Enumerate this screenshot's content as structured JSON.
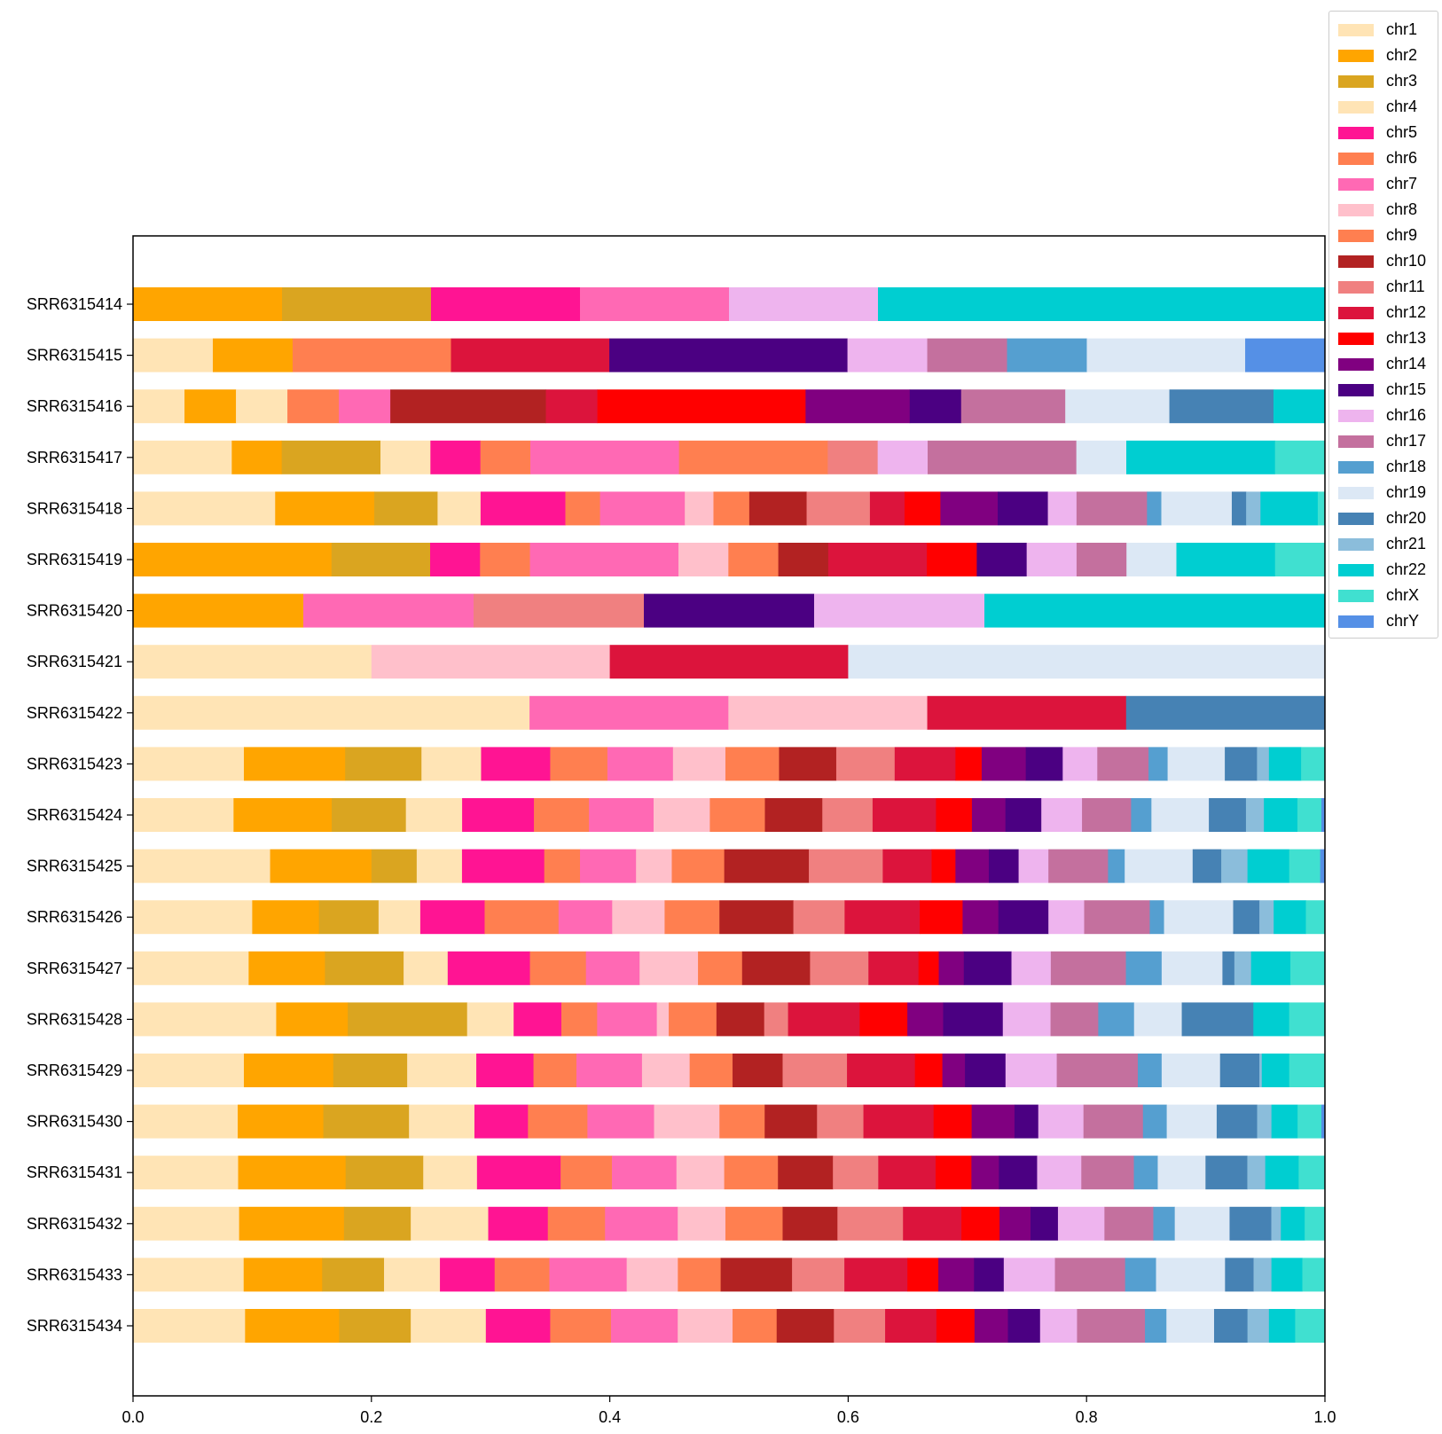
{
  "chart_data": {
    "type": "bar",
    "orientation": "horizontal",
    "stacked": true,
    "normalized": true,
    "title": "",
    "xlabel": "",
    "ylabel": "",
    "xlim": [
      0,
      1
    ],
    "xticks": [
      "0.0",
      "0.2",
      "0.4",
      "0.6",
      "0.8",
      "1.0"
    ],
    "grid": false,
    "legend_position": "top-right, outside plot",
    "categories": [
      "SRR6315414",
      "SRR6315415",
      "SRR6315416",
      "SRR6315417",
      "SRR6315418",
      "SRR6315419",
      "SRR6315420",
      "SRR6315421",
      "SRR6315422",
      "SRR6315423",
      "SRR6315424",
      "SRR6315425",
      "SRR6315426",
      "SRR6315427",
      "SRR6315428",
      "SRR6315429",
      "SRR6315430",
      "SRR6315431",
      "SRR6315432",
      "SRR6315433",
      "SRR6315434"
    ],
    "series": [
      {
        "name": "chr1",
        "color": "#FFE4B5",
        "values": [
          0,
          0.067,
          0.043,
          0.083,
          0.119,
          0,
          0,
          0.2,
          0.333,
          0.093,
          0.084,
          0.115,
          0.1,
          0.097,
          0.12,
          0.093,
          0.088,
          0.088,
          0.089,
          0.093,
          0.094
        ]
      },
      {
        "name": "chr2",
        "color": "#FFA500",
        "values": [
          0.125,
          0.067,
          0.043,
          0.042,
          0.083,
          0.167,
          0.143,
          0,
          0,
          0.085,
          0.082,
          0.085,
          0.056,
          0.064,
          0.06,
          0.075,
          0.072,
          0.09,
          0.088,
          0.066,
          0.079
        ]
      },
      {
        "name": "chr3",
        "color": "#DAA520",
        "values": [
          0.125,
          0,
          0,
          0.083,
          0.053,
          0.083,
          0,
          0,
          0,
          0.064,
          0.062,
          0.038,
          0.05,
          0.066,
          0.1,
          0.062,
          0.072,
          0.065,
          0.056,
          0.052,
          0.06
        ]
      },
      {
        "name": "chr4",
        "color": "#FFE4B5",
        "values": [
          0,
          0,
          0.043,
          0.042,
          0.036,
          0,
          0,
          0,
          0,
          0.05,
          0.047,
          0.038,
          0.035,
          0.037,
          0.039,
          0.058,
          0.055,
          0.045,
          0.065,
          0.047,
          0.063
        ]
      },
      {
        "name": "chr5",
        "color": "#FF1493",
        "values": [
          0.125,
          0,
          0,
          0.042,
          0.071,
          0.042,
          0,
          0,
          0,
          0.058,
          0.06,
          0.069,
          0.054,
          0.069,
          0.04,
          0.048,
          0.045,
          0.07,
          0.05,
          0.046,
          0.054
        ]
      },
      {
        "name": "chr6",
        "color": "#FF7F50",
        "values": [
          0,
          0.133,
          0.043,
          0.042,
          0.029,
          0.042,
          0,
          0,
          0,
          0.048,
          0.046,
          0.03,
          0.062,
          0.047,
          0.03,
          0.036,
          0.05,
          0.043,
          0.048,
          0.046,
          0.051
        ]
      },
      {
        "name": "chr7",
        "color": "#FF69B4",
        "values": [
          0.125,
          0,
          0.043,
          0.125,
          0.071,
          0.125,
          0.143,
          0,
          0.167,
          0.055,
          0.054,
          0.047,
          0.045,
          0.045,
          0.05,
          0.055,
          0.056,
          0.054,
          0.061,
          0.065,
          0.056
        ]
      },
      {
        "name": "chr8",
        "color": "#FFC0CB",
        "values": [
          0,
          0,
          0,
          0,
          0.024,
          0.042,
          0,
          0.2,
          0.167,
          0.044,
          0.047,
          0.03,
          0.044,
          0.049,
          0.01,
          0.04,
          0.055,
          0.04,
          0.04,
          0.043,
          0.046
        ]
      },
      {
        "name": "chr9",
        "color": "#FF7F50",
        "values": [
          0,
          0,
          0,
          0.125,
          0.03,
          0.042,
          0,
          0,
          0,
          0.045,
          0.046,
          0.044,
          0.046,
          0.037,
          0.04,
          0.036,
          0.038,
          0.045,
          0.048,
          0.036,
          0.037
        ]
      },
      {
        "name": "chr10",
        "color": "#B22222",
        "values": [
          0,
          0,
          0.13,
          0,
          0.048,
          0.042,
          0,
          0,
          0,
          0.048,
          0.048,
          0.071,
          0.062,
          0.057,
          0.04,
          0.042,
          0.044,
          0.046,
          0.046,
          0.06,
          0.048
        ]
      },
      {
        "name": "chr11",
        "color": "#F08080",
        "values": [
          0,
          0,
          0,
          0.042,
          0.053,
          0,
          0.143,
          0,
          0,
          0.049,
          0.042,
          0.062,
          0.043,
          0.049,
          0.02,
          0.054,
          0.039,
          0.038,
          0.055,
          0.044,
          0.043
        ]
      },
      {
        "name": "chr12",
        "color": "#DC143C",
        "values": [
          0,
          0.133,
          0.043,
          0,
          0.029,
          0.083,
          0,
          0.2,
          0.167,
          0.051,
          0.053,
          0.041,
          0.063,
          0.042,
          0.06,
          0.057,
          0.059,
          0.048,
          0.049,
          0.053,
          0.043
        ]
      },
      {
        "name": "chr13",
        "color": "#FF0000",
        "values": [
          0,
          0,
          0.174,
          0,
          0.03,
          0.042,
          0,
          0,
          0,
          0.022,
          0.03,
          0.02,
          0.036,
          0.017,
          0.04,
          0.023,
          0.032,
          0.03,
          0.032,
          0.026,
          0.032
        ]
      },
      {
        "name": "chr14",
        "color": "#800080",
        "values": [
          0,
          0,
          0.087,
          0,
          0.048,
          0,
          0,
          0,
          0,
          0.037,
          0.028,
          0.028,
          0.03,
          0.021,
          0.03,
          0.019,
          0.036,
          0.023,
          0.026,
          0.03,
          0.028
        ]
      },
      {
        "name": "chr15",
        "color": "#4B0082",
        "values": [
          0,
          0.2,
          0.043,
          0,
          0.042,
          0.042,
          0.143,
          0,
          0,
          0.031,
          0.03,
          0.025,
          0.042,
          0.04,
          0.05,
          0.034,
          0.02,
          0.032,
          0.023,
          0.025,
          0.027
        ]
      },
      {
        "name": "chr16",
        "color": "#EEB4EE",
        "values": [
          0.125,
          0.067,
          0,
          0.042,
          0.024,
          0.042,
          0.143,
          0,
          0,
          0.029,
          0.034,
          0.025,
          0.03,
          0.033,
          0.04,
          0.043,
          0.038,
          0.037,
          0.039,
          0.043,
          0.031
        ]
      },
      {
        "name": "chr17",
        "color": "#C4709E",
        "values": [
          0,
          0.067,
          0.087,
          0.125,
          0.059,
          0.042,
          0,
          0,
          0,
          0.043,
          0.041,
          0.05,
          0.055,
          0.063,
          0.04,
          0.068,
          0.05,
          0.044,
          0.041,
          0.059,
          0.057
        ]
      },
      {
        "name": "chr18",
        "color": "#559FD0",
        "values": [
          0,
          0.067,
          0,
          0,
          0.012,
          0,
          0,
          0,
          0,
          0.016,
          0.017,
          0.014,
          0.012,
          0.03,
          0.03,
          0.02,
          0.02,
          0.02,
          0.018,
          0.026,
          0.018
        ]
      },
      {
        "name": "chr19",
        "color": "#DCE8F5",
        "values": [
          0,
          0.133,
          0.087,
          0.042,
          0.059,
          0.042,
          0,
          0.4,
          0,
          0.048,
          0.048,
          0.057,
          0.058,
          0.051,
          0.04,
          0.049,
          0.042,
          0.04,
          0.046,
          0.058,
          0.04
        ]
      },
      {
        "name": "chr20",
        "color": "#4682B4",
        "values": [
          0,
          0,
          0.087,
          0,
          0.012,
          0,
          0,
          0,
          0.167,
          0.027,
          0.031,
          0.024,
          0.022,
          0.01,
          0.06,
          0.033,
          0.034,
          0.035,
          0.035,
          0.024,
          0.028
        ]
      },
      {
        "name": "chr21",
        "color": "#8BBDDB",
        "values": [
          0,
          0,
          0,
          0,
          0.012,
          0,
          0,
          0,
          0,
          0.01,
          0.015,
          0.022,
          0.012,
          0.014,
          0,
          0.002,
          0.012,
          0.015,
          0.008,
          0.015,
          0.018
        ]
      },
      {
        "name": "chr22",
        "color": "#00CED1",
        "values": [
          0.375,
          0,
          0.043,
          0.125,
          0.048,
          0.083,
          0.286,
          0,
          0,
          0.027,
          0.028,
          0.035,
          0.027,
          0.033,
          0.03,
          0.023,
          0.022,
          0.028,
          0.02,
          0.026,
          0.022
        ]
      },
      {
        "name": "chrX",
        "color": "#40E0D0",
        "values": [
          0,
          0,
          0,
          0.042,
          0.006,
          0.042,
          0,
          0,
          0,
          0.02,
          0.02,
          0.026,
          0.016,
          0.029,
          0.03,
          0.03,
          0.02,
          0.022,
          0.017,
          0.019,
          0.025
        ]
      },
      {
        "name": "chrY",
        "color": "#5590E6",
        "values": [
          0,
          0.067,
          0,
          0,
          0,
          0,
          0,
          0,
          0,
          0,
          0.003,
          0.004,
          0,
          0,
          0,
          0,
          0.003,
          0,
          0,
          0,
          0
        ]
      }
    ]
  }
}
